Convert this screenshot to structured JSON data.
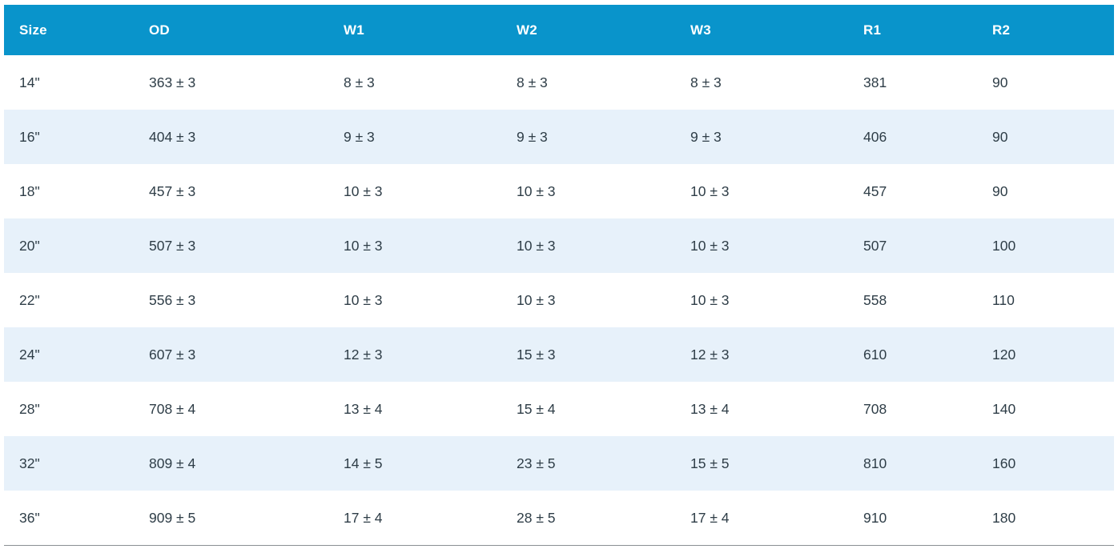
{
  "colors": {
    "header_bg": "#0994cb",
    "header_text": "#ffffff",
    "row_alt_bg": "#e7f1fa",
    "body_text": "#2e3d47",
    "bottom_rule": "#8a8f93"
  },
  "table": {
    "columns": [
      {
        "key": "size",
        "label": "Size"
      },
      {
        "key": "od",
        "label": "OD"
      },
      {
        "key": "w1",
        "label": "W1"
      },
      {
        "key": "w2",
        "label": "W2"
      },
      {
        "key": "w3",
        "label": "W3"
      },
      {
        "key": "r1",
        "label": "R1"
      },
      {
        "key": "r2",
        "label": "R2"
      }
    ],
    "rows": [
      {
        "size": "14\"",
        "od": "363 ± 3",
        "w1": "8 ± 3",
        "w2": "8 ± 3",
        "w3": "8 ± 3",
        "r1": "381",
        "r2": "90"
      },
      {
        "size": "16\"",
        "od": "404 ± 3",
        "w1": "9 ± 3",
        "w2": "9 ± 3",
        "w3": "9 ± 3",
        "r1": "406",
        "r2": "90"
      },
      {
        "size": "18\"",
        "od": "457 ± 3",
        "w1": "10 ± 3",
        "w2": "10 ± 3",
        "w3": "10 ± 3",
        "r1": "457",
        "r2": "90"
      },
      {
        "size": "20\"",
        "od": "507 ± 3",
        "w1": "10 ± 3",
        "w2": "10 ± 3",
        "w3": "10 ± 3",
        "r1": "507",
        "r2": "100"
      },
      {
        "size": "22\"",
        "od": "556 ± 3",
        "w1": "10 ± 3",
        "w2": "10 ± 3",
        "w3": "10 ± 3",
        "r1": "558",
        "r2": "110"
      },
      {
        "size": "24\"",
        "od": "607 ± 3",
        "w1": "12 ± 3",
        "w2": "15 ± 3",
        "w3": "12 ± 3",
        "r1": "610",
        "r2": "120"
      },
      {
        "size": "28\"",
        "od": "708 ± 4",
        "w1": "13 ± 4",
        "w2": "15 ± 4",
        "w3": "13 ± 4",
        "r1": "708",
        "r2": "140"
      },
      {
        "size": "32\"",
        "od": "809 ± 4",
        "w1": "14 ± 5",
        "w2": "23 ± 5",
        "w3": "15 ± 5",
        "r1": "810",
        "r2": "160"
      },
      {
        "size": "36\"",
        "od": "909 ± 5",
        "w1": "17 ± 4",
        "w2": "28 ± 5",
        "w3": "17 ± 4",
        "r1": "910",
        "r2": "180"
      }
    ]
  },
  "chart_data": {
    "type": "table",
    "columns": [
      "Size",
      "OD",
      "W1",
      "W2",
      "W3",
      "R1",
      "R2"
    ],
    "rows": [
      [
        "14\"",
        "363 ± 3",
        "8 ± 3",
        "8 ± 3",
        "8 ± 3",
        "381",
        "90"
      ],
      [
        "16\"",
        "404 ± 3",
        "9 ± 3",
        "9 ± 3",
        "9 ± 3",
        "406",
        "90"
      ],
      [
        "18\"",
        "457 ± 3",
        "10 ± 3",
        "10 ± 3",
        "10 ± 3",
        "457",
        "90"
      ],
      [
        "20\"",
        "507 ± 3",
        "10 ± 3",
        "10 ± 3",
        "10 ± 3",
        "507",
        "100"
      ],
      [
        "22\"",
        "556 ± 3",
        "10 ± 3",
        "10 ± 3",
        "10 ± 3",
        "558",
        "110"
      ],
      [
        "24\"",
        "607 ± 3",
        "12 ± 3",
        "15 ± 3",
        "12 ± 3",
        "610",
        "120"
      ],
      [
        "28\"",
        "708 ± 4",
        "13 ± 4",
        "15 ± 4",
        "13 ± 4",
        "708",
        "140"
      ],
      [
        "32\"",
        "809 ± 4",
        "14 ± 5",
        "23 ± 5",
        "15 ± 5",
        "810",
        "160"
      ],
      [
        "36\"",
        "909 ± 5",
        "17 ± 4",
        "28 ± 5",
        "17 ± 4",
        "910",
        "180"
      ]
    ]
  }
}
